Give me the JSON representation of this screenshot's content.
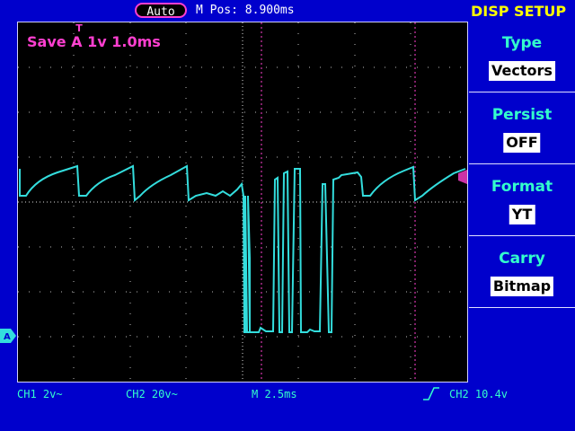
{
  "topbar": {
    "mode": "Auto",
    "mpos": "M Pos: 8.900ms"
  },
  "menu": {
    "title": "DISP SETUP",
    "options": [
      {
        "label": "Type",
        "value": "Vectors"
      },
      {
        "label": "Persist",
        "value": "OFF"
      },
      {
        "label": "Format",
        "value": "YT"
      },
      {
        "label": "Carry",
        "value": "Bitmap"
      }
    ]
  },
  "screen": {
    "save_label": "Save A 1v 1.0ms",
    "trace_color": "#33dddd",
    "grid_color": "#bbbbbb",
    "cursor_color": "#ff3fd0"
  },
  "status": {
    "ch1": "CH1 2v~",
    "ch2": "CH2 20v~",
    "timebase": "M 2.5ms",
    "trigger": "CH2 10.4v"
  },
  "colors": {
    "background": "#0000cc",
    "screen": "#000000",
    "accent": "#33ffcc",
    "title": "#ffff00",
    "highlight": "#ff3fd0"
  }
}
